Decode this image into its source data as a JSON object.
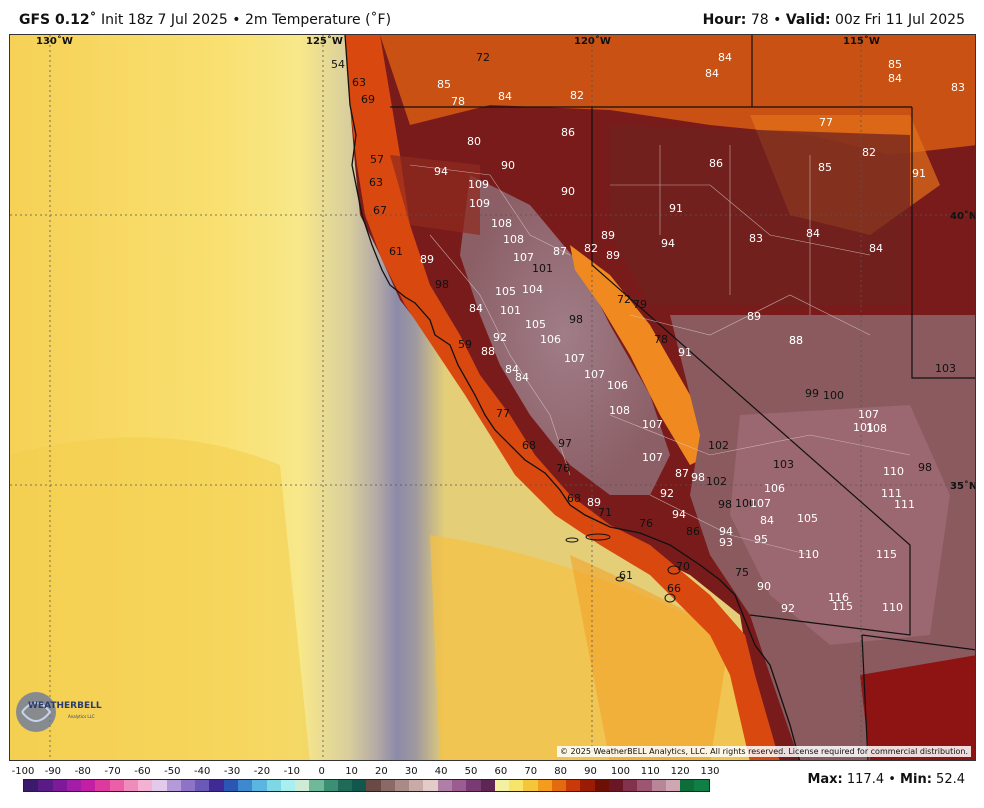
{
  "header": {
    "model": "GFS 0.12˚",
    "init": "Init 18z 7 Jul 2025",
    "field": "2m Temperature (˚F)",
    "hour_label": "Hour:",
    "hour_value": "78",
    "valid_label": "Valid:",
    "valid_value": "00z Fri 11 Jul 2025"
  },
  "map": {
    "longitudes": [
      "130˚W",
      "125˚W",
      "120˚W",
      "115˚W"
    ],
    "latitudes": [
      "40˚N",
      "35˚N"
    ],
    "copyright": "© 2025 WeatherBELL Analytics, LLC. All rights reserved. License required for commercial distribution.",
    "logo_text": "WEATHERBELL",
    "logo_sub": "Analytics LLC",
    "temperature_labels": [
      {
        "v": "54",
        "c": "dark"
      },
      {
        "v": "63",
        "c": "dark"
      },
      {
        "v": "69",
        "c": "dark"
      },
      {
        "v": "72",
        "c": "dark"
      },
      {
        "v": "85",
        "c": "light"
      },
      {
        "v": "78",
        "c": "light"
      },
      {
        "v": "84",
        "c": "light"
      },
      {
        "v": "82",
        "c": "light"
      },
      {
        "v": "84",
        "c": "light"
      },
      {
        "v": "84",
        "c": "light"
      },
      {
        "v": "85",
        "c": "light"
      },
      {
        "v": "84",
        "c": "light"
      },
      {
        "v": "83",
        "c": "light"
      },
      {
        "v": "86",
        "c": "light"
      },
      {
        "v": "77",
        "c": "light"
      },
      {
        "v": "82",
        "c": "light"
      },
      {
        "v": "80",
        "c": "light"
      },
      {
        "v": "57",
        "c": "dark"
      },
      {
        "v": "90",
        "c": "light"
      },
      {
        "v": "94",
        "c": "light"
      },
      {
        "v": "86",
        "c": "light"
      },
      {
        "v": "85",
        "c": "light"
      },
      {
        "v": "91",
        "c": "light"
      },
      {
        "v": "63",
        "c": "dark"
      },
      {
        "v": "109",
        "c": "light"
      },
      {
        "v": "90",
        "c": "light"
      },
      {
        "v": "109",
        "c": "light"
      },
      {
        "v": "91",
        "c": "light"
      },
      {
        "v": "67",
        "c": "dark"
      },
      {
        "v": "108",
        "c": "light"
      },
      {
        "v": "108",
        "c": "light"
      },
      {
        "v": "89",
        "c": "light"
      },
      {
        "v": "94",
        "c": "light"
      },
      {
        "v": "83",
        "c": "light"
      },
      {
        "v": "84",
        "c": "light"
      },
      {
        "v": "84",
        "c": "light"
      },
      {
        "v": "61",
        "c": "dark"
      },
      {
        "v": "89",
        "c": "light"
      },
      {
        "v": "87",
        "c": "light"
      },
      {
        "v": "82",
        "c": "light"
      },
      {
        "v": "89",
        "c": "light"
      },
      {
        "v": "107",
        "c": "light"
      },
      {
        "v": "101",
        "c": "dark"
      },
      {
        "v": "98",
        "c": "dark"
      },
      {
        "v": "105",
        "c": "light"
      },
      {
        "v": "104",
        "c": "light"
      },
      {
        "v": "72",
        "c": "dark"
      },
      {
        "v": "79",
        "c": "dark"
      },
      {
        "v": "84",
        "c": "light"
      },
      {
        "v": "101",
        "c": "light"
      },
      {
        "v": "89",
        "c": "light"
      },
      {
        "v": "98",
        "c": "dark"
      },
      {
        "v": "105",
        "c": "light"
      },
      {
        "v": "92",
        "c": "light"
      },
      {
        "v": "88",
        "c": "light"
      },
      {
        "v": "59",
        "c": "dark"
      },
      {
        "v": "106",
        "c": "light"
      },
      {
        "v": "78",
        "c": "dark"
      },
      {
        "v": "88",
        "c": "light"
      },
      {
        "v": "88",
        "c": "light"
      },
      {
        "v": "91",
        "c": "light"
      },
      {
        "v": "107",
        "c": "light"
      },
      {
        "v": "84",
        "c": "light"
      },
      {
        "v": "84",
        "c": "light"
      },
      {
        "v": "107",
        "c": "light"
      },
      {
        "v": "106",
        "c": "light"
      },
      {
        "v": "103",
        "c": "dark"
      },
      {
        "v": "99",
        "c": "dark"
      },
      {
        "v": "100",
        "c": "dark"
      },
      {
        "v": "77",
        "c": "dark"
      },
      {
        "v": "108",
        "c": "light"
      },
      {
        "v": "107",
        "c": "light"
      },
      {
        "v": "101",
        "c": "light"
      },
      {
        "v": "108",
        "c": "light"
      },
      {
        "v": "107",
        "c": "light"
      },
      {
        "v": "97",
        "c": "dark"
      },
      {
        "v": "68",
        "c": "dark"
      },
      {
        "v": "102",
        "c": "dark"
      },
      {
        "v": "107",
        "c": "light"
      },
      {
        "v": "103",
        "c": "dark"
      },
      {
        "v": "110",
        "c": "light"
      },
      {
        "v": "98",
        "c": "dark"
      },
      {
        "v": "76",
        "c": "dark"
      },
      {
        "v": "87",
        "c": "light"
      },
      {
        "v": "98",
        "c": "light"
      },
      {
        "v": "102",
        "c": "dark"
      },
      {
        "v": "106",
        "c": "light"
      },
      {
        "v": "111",
        "c": "light"
      },
      {
        "v": "92",
        "c": "light"
      },
      {
        "v": "111",
        "c": "light"
      },
      {
        "v": "68",
        "c": "dark"
      },
      {
        "v": "89",
        "c": "light"
      },
      {
        "v": "98",
        "c": "dark"
      },
      {
        "v": "100",
        "c": "dark"
      },
      {
        "v": "107",
        "c": "light"
      },
      {
        "v": "71",
        "c": "dark"
      },
      {
        "v": "94",
        "c": "light"
      },
      {
        "v": "84",
        "c": "light"
      },
      {
        "v": "105",
        "c": "light"
      },
      {
        "v": "76",
        "c": "dark"
      },
      {
        "v": "86",
        "c": "dark"
      },
      {
        "v": "94",
        "c": "light"
      },
      {
        "v": "93",
        "c": "light"
      },
      {
        "v": "95",
        "c": "light"
      },
      {
        "v": "110",
        "c": "light"
      },
      {
        "v": "115",
        "c": "light"
      },
      {
        "v": "70",
        "c": "dark"
      },
      {
        "v": "61",
        "c": "dark"
      },
      {
        "v": "75",
        "c": "dark"
      },
      {
        "v": "90",
        "c": "light"
      },
      {
        "v": "66",
        "c": "dark"
      },
      {
        "v": "116",
        "c": "light"
      },
      {
        "v": "115",
        "c": "light"
      },
      {
        "v": "110",
        "c": "light"
      },
      {
        "v": "92",
        "c": "light"
      }
    ]
  },
  "scale": {
    "labels": [
      "-100",
      "-90",
      "-80",
      "-70",
      "-60",
      "-50",
      "-40",
      "-30",
      "-20",
      "-10",
      "0",
      "10",
      "20",
      "30",
      "40",
      "50",
      "60",
      "70",
      "80",
      "90",
      "100",
      "110",
      "120",
      "130"
    ],
    "colors": [
      "#3b1a6e",
      "#5a1b86",
      "#7e1a9a",
      "#a41da6",
      "#c21fa4",
      "#dc3a9e",
      "#ea5fa6",
      "#f08cbc",
      "#f4b2d3",
      "#e3c9ea",
      "#b49ad8",
      "#8d74c6",
      "#6b59b8",
      "#3f2a96",
      "#2b56b4",
      "#3d88cf",
      "#5ab6e0",
      "#7fd7e6",
      "#a9eef0",
      "#cdebd5",
      "#6fb89a",
      "#3b8f73",
      "#1f6b57",
      "#12574c",
      "#6b4a45",
      "#8a6a66",
      "#a98a86",
      "#c8aaa7",
      "#e3cbc9",
      "#b07fa8",
      "#9b5c92",
      "#7a3a73",
      "#5e2652",
      "#f3f0a1",
      "#f8e36b",
      "#f5c63a",
      "#f39c1d",
      "#e46a0f",
      "#c83a07",
      "#9a1c05",
      "#6e0f06",
      "#6b1624",
      "#82324a",
      "#9c5672",
      "#b98697",
      "#cfa7b3",
      "#0d6e3a",
      "#0f7f45"
    ]
  },
  "maxmin": {
    "max_label": "Max:",
    "max_value": "117.4",
    "min_label": "Min:",
    "min_value": "52.4"
  }
}
